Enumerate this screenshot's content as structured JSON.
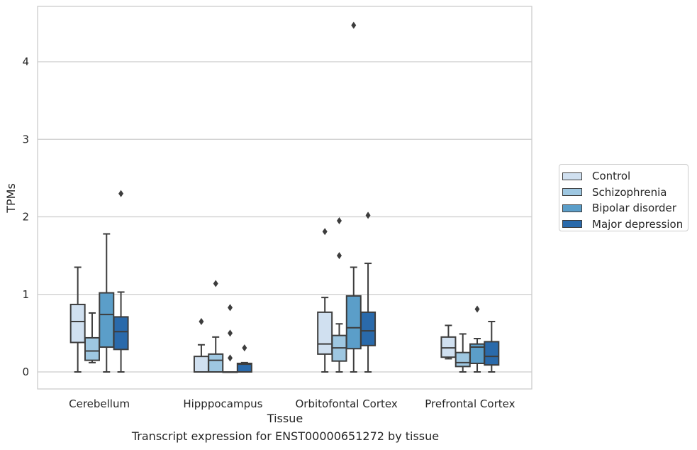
{
  "chart_data": {
    "type": "box",
    "xlabel": "Tissue",
    "ylabel": "TPMs",
    "caption": "Transcript expression for ENST00000651272 by tissue",
    "ylim": [
      -0.2,
      4.7
    ],
    "yticks": [
      0,
      1,
      2,
      3,
      4
    ],
    "grid": "horizontal",
    "legend_position": "right",
    "categories": [
      "Cerebellum",
      "Hipppocampus",
      "Orbitofontal Cortex",
      "Prefrontal Cortex"
    ],
    "series": [
      {
        "name": "Control",
        "color": "#d0e0f0",
        "boxes": [
          {
            "whislo": 0.0,
            "q1": 0.38,
            "med": 0.65,
            "q3": 0.87,
            "whishi": 1.35,
            "fliers": []
          },
          {
            "whislo": 0.0,
            "q1": 0.0,
            "med": 0.0,
            "q3": 0.2,
            "whishi": 0.35,
            "fliers": [
              0.65
            ]
          },
          {
            "whislo": 0.0,
            "q1": 0.23,
            "med": 0.36,
            "q3": 0.77,
            "whishi": 0.96,
            "fliers": [
              1.81
            ]
          },
          {
            "whislo": 0.17,
            "q1": 0.19,
            "med": 0.31,
            "q3": 0.45,
            "whishi": 0.6,
            "fliers": []
          }
        ]
      },
      {
        "name": "Schizophrenia",
        "color": "#9ec7e1",
        "boxes": [
          {
            "whislo": 0.12,
            "q1": 0.15,
            "med": 0.27,
            "q3": 0.44,
            "whishi": 0.76,
            "fliers": []
          },
          {
            "whislo": 0.0,
            "q1": 0.0,
            "med": 0.15,
            "q3": 0.23,
            "whishi": 0.45,
            "fliers": [
              1.14
            ]
          },
          {
            "whislo": 0.0,
            "q1": 0.14,
            "med": 0.31,
            "q3": 0.47,
            "whishi": 0.62,
            "fliers": [
              1.5,
              1.95
            ]
          },
          {
            "whislo": 0.0,
            "q1": 0.07,
            "med": 0.12,
            "q3": 0.25,
            "whishi": 0.49,
            "fliers": []
          }
        ]
      },
      {
        "name": "Bipolar disorder",
        "color": "#5b9ec9",
        "boxes": [
          {
            "whislo": 0.0,
            "q1": 0.32,
            "med": 0.74,
            "q3": 1.02,
            "whishi": 1.78,
            "fliers": []
          },
          {
            "whislo": 0.0,
            "q1": 0.0,
            "med": 0.0,
            "q3": 0.0,
            "whishi": 0.0,
            "fliers": [
              0.18,
              0.5,
              0.83
            ]
          },
          {
            "whislo": 0.0,
            "q1": 0.3,
            "med": 0.57,
            "q3": 0.98,
            "whishi": 1.35,
            "fliers": [
              4.47
            ]
          },
          {
            "whislo": 0.0,
            "q1": 0.11,
            "med": 0.32,
            "q3": 0.36,
            "whishi": 0.43,
            "fliers": [
              0.81
            ]
          }
        ]
      },
      {
        "name": "Major depression",
        "color": "#2a6aab",
        "boxes": [
          {
            "whislo": 0.0,
            "q1": 0.29,
            "med": 0.52,
            "q3": 0.71,
            "whishi": 1.03,
            "fliers": [
              2.3
            ]
          },
          {
            "whislo": 0.0,
            "q1": 0.0,
            "med": 0.1,
            "q3": 0.11,
            "whishi": 0.12,
            "fliers": [
              0.31
            ]
          },
          {
            "whislo": 0.0,
            "q1": 0.34,
            "med": 0.53,
            "q3": 0.77,
            "whishi": 1.4,
            "fliers": [
              2.02
            ]
          },
          {
            "whislo": 0.0,
            "q1": 0.09,
            "med": 0.2,
            "q3": 0.39,
            "whishi": 0.65,
            "fliers": []
          }
        ]
      }
    ]
  }
}
